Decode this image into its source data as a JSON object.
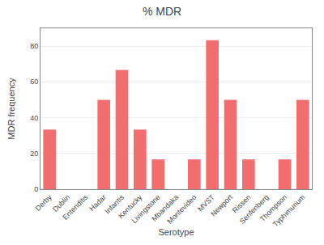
{
  "chart_data": {
    "type": "bar",
    "title": "% MDR",
    "xlabel": "Serotype",
    "ylabel": "MDR frequency",
    "categories": [
      "Derby",
      "Dublin",
      "Enteriditis",
      "Hadar",
      "Infantis",
      "Kentucky",
      "Livingstone",
      "Mbandaka",
      "Montevideo",
      "MVST",
      "Newport",
      "Rissen",
      "Senfenberg",
      "Thompson",
      "Typhimurium"
    ],
    "values": [
      33.33,
      0,
      0,
      50.0,
      66.67,
      33.33,
      16.67,
      0,
      16.67,
      83.33,
      50.0,
      16.67,
      0,
      16.67,
      50.0
    ],
    "color": "#f26d6d",
    "ylim": [
      0,
      90
    ],
    "yticks": [
      0,
      20,
      40,
      60,
      80
    ],
    "grid": true
  }
}
